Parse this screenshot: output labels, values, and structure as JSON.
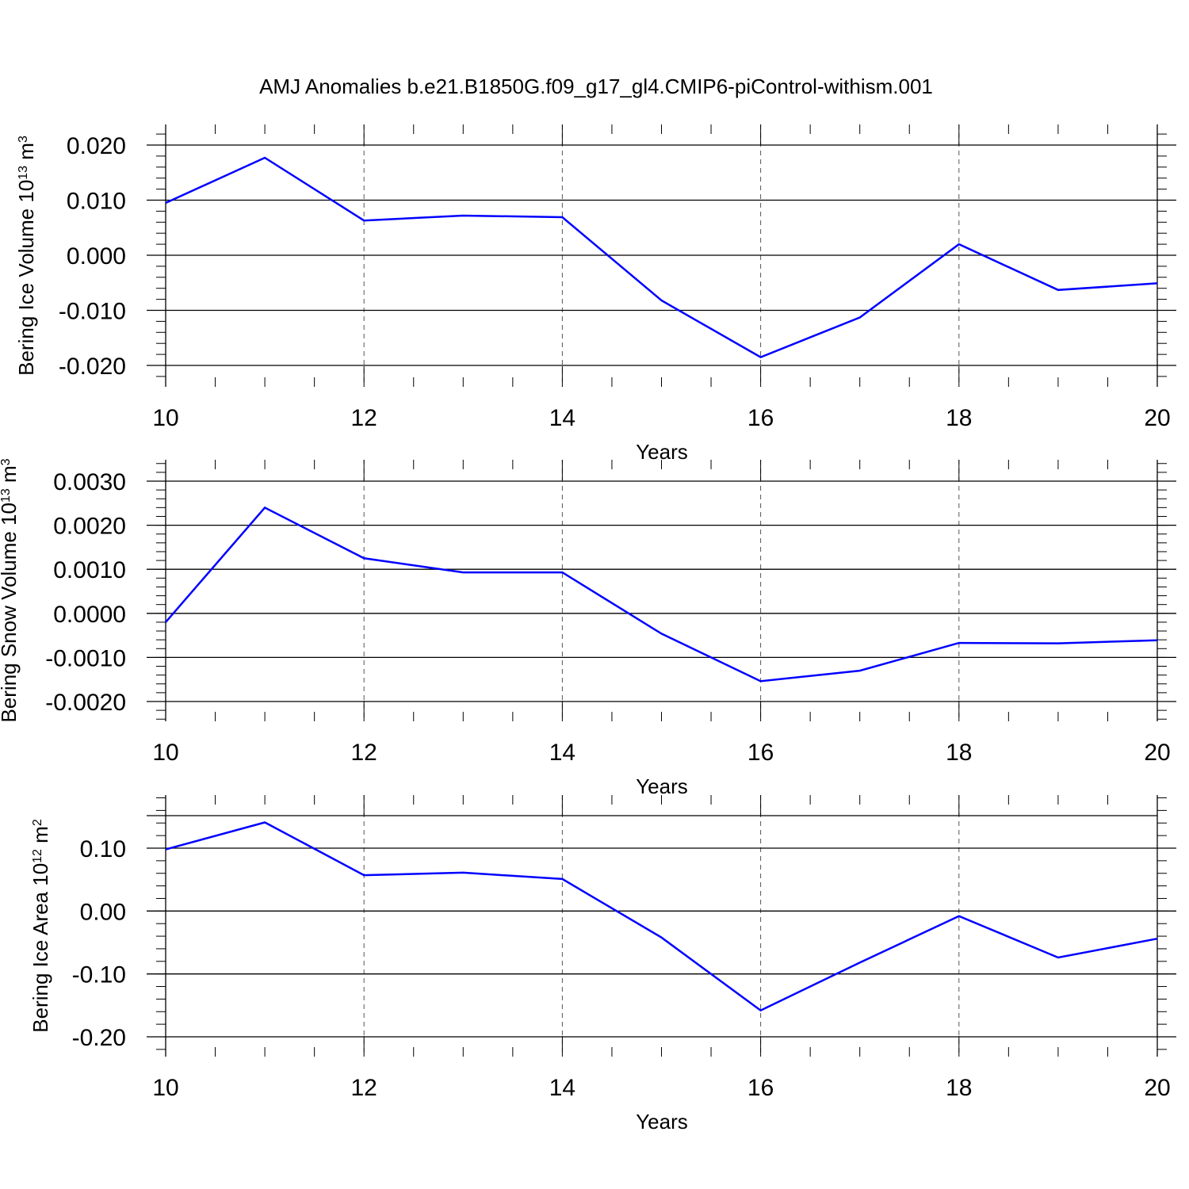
{
  "title": "AMJ Anomalies b.e21.B1850G.f09_g17_gl4.CMIP6-piControl-withism.001",
  "line_color": "#0000ff",
  "chart_data": [
    {
      "type": "line",
      "xlabel": "Years",
      "ylabel": {
        "text": "Bering Ice Volume 10",
        "exp": "13",
        "unit": " m",
        "unit_exp": "3"
      },
      "xlim": [
        10,
        20
      ],
      "ylim": [
        -0.02,
        0.02
      ],
      "x_ticks": [
        10,
        12,
        14,
        16,
        18,
        20
      ],
      "x_tick_labels": [
        "10",
        "12",
        "14",
        "16",
        "18",
        "20"
      ],
      "y_ticks": [
        -0.02,
        -0.01,
        0.0,
        0.01,
        0.02
      ],
      "y_tick_labels": [
        "-0.020",
        "-0.010",
        "0.000",
        "0.010",
        "0.020"
      ],
      "grid": "vertical dashed at x ticks",
      "series": [
        {
          "x": [
            10,
            11,
            12,
            13,
            14,
            15,
            16,
            17,
            18,
            19,
            20
          ],
          "values": [
            0.0095,
            0.0177,
            0.0063,
            0.0072,
            0.0069,
            -0.0082,
            -0.0185,
            -0.0113,
            0.002,
            -0.0063,
            -0.0051
          ]
        }
      ]
    },
    {
      "type": "line",
      "xlabel": "Years",
      "ylabel": {
        "text": "Bering Snow Volume 10",
        "exp": "13",
        "unit": " m",
        "unit_exp": "3"
      },
      "xlim": [
        10,
        20
      ],
      "ylim": [
        -0.002,
        0.003
      ],
      "x_ticks": [
        10,
        12,
        14,
        16,
        18,
        20
      ],
      "x_tick_labels": [
        "10",
        "12",
        "14",
        "16",
        "18",
        "20"
      ],
      "y_ticks": [
        -0.002,
        -0.001,
        0.0,
        0.001,
        0.002,
        0.003
      ],
      "y_tick_labels": [
        "-0.0020",
        "-0.0010",
        "0.0000",
        "0.0010",
        "0.0020",
        "0.0030"
      ],
      "grid": "vertical dashed at x ticks",
      "series": [
        {
          "x": [
            10,
            11,
            12,
            13,
            14,
            15,
            16,
            17,
            18,
            19,
            20
          ],
          "values": [
            -0.0002,
            0.0024,
            0.00125,
            0.00093,
            0.00093,
            -0.00046,
            -0.00154,
            -0.0013,
            -0.00067,
            -0.00068,
            -0.00061
          ]
        }
      ]
    },
    {
      "type": "line",
      "xlabel": "Years",
      "ylabel": {
        "text": "Bering Ice Area 10",
        "exp": "12",
        "unit": " m",
        "unit_exp": "2"
      },
      "xlim": [
        10,
        20
      ],
      "ylim": [
        -0.2,
        0.15
      ],
      "x_ticks": [
        10,
        12,
        14,
        16,
        18,
        20
      ],
      "x_tick_labels": [
        "10",
        "12",
        "14",
        "16",
        "18",
        "20"
      ],
      "y_ticks": [
        -0.2,
        -0.1,
        0.0,
        0.1
      ],
      "y_tick_labels": [
        "-0.20",
        "-0.10",
        "0.00",
        "0.10"
      ],
      "grid": "vertical dashed at x ticks",
      "series": [
        {
          "x": [
            10,
            11,
            12,
            13,
            14,
            15,
            16,
            17,
            18,
            19,
            20
          ],
          "values": [
            0.098,
            0.141,
            0.057,
            0.061,
            0.051,
            -0.042,
            -0.158,
            -0.082,
            -0.008,
            -0.074,
            -0.044
          ]
        }
      ]
    }
  ]
}
